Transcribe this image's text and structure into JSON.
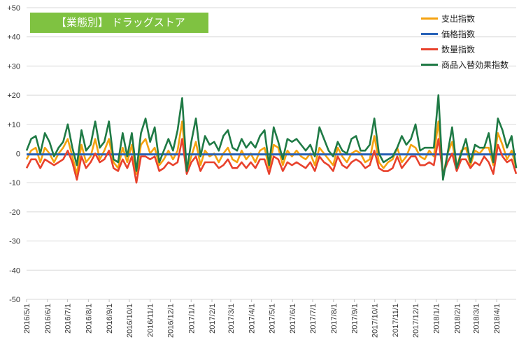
{
  "title": "【業態別】 ドラッグストア",
  "chart_data": {
    "type": "line",
    "title": "【業態別】 ドラッグストア",
    "ylim": [
      -50,
      50
    ],
    "yticks": [
      "+50",
      "+40",
      "+30",
      "+20",
      "+10",
      "0",
      "-10",
      "-20",
      "-30",
      "-40",
      "-50"
    ],
    "ytick_values": [
      50,
      40,
      30,
      20,
      10,
      0,
      -10,
      -20,
      -30,
      -40,
      -50
    ],
    "x_tick_labels": [
      "2016/5/1",
      "2016/6/1",
      "2016/7/1",
      "2016/8/1",
      "2016/9/1",
      "2016/10/1",
      "2016/11/1",
      "2016/12/1",
      "2017/1/1",
      "2017/2/1",
      "2017/3/1",
      "2017/4/1",
      "2017/5/1",
      "2017/6/1",
      "2017/7/1",
      "2017/8/1",
      "2017/9/1",
      "2017/10/1",
      "2017/11/1",
      "2017/12/1",
      "2018/1/1",
      "2018/2/1",
      "2018/3/1",
      "2018/4/1"
    ],
    "x_start": "2016/5/1",
    "x_end": "2018/4/30",
    "x_interval": "weekly",
    "grid": true,
    "legend_position": "top-right",
    "series": [
      {
        "name": "支出指数",
        "color": "#f5a20f",
        "values": [
          -2,
          1,
          2,
          -3,
          2,
          0,
          -3,
          0,
          2,
          5,
          -1,
          -7,
          3,
          -3,
          -1,
          5,
          -2,
          1,
          5,
          -3,
          -5,
          2,
          -3,
          3,
          -7,
          3,
          5,
          0,
          2,
          -4,
          -2,
          1,
          -2,
          1,
          11,
          -6,
          -1,
          4,
          -4,
          1,
          -1,
          0,
          -3,
          0,
          2,
          -2,
          -3,
          1,
          -2,
          0,
          -3,
          1,
          2,
          -5,
          3,
          2,
          -4,
          1,
          -1,
          1,
          -1,
          -2,
          0,
          -4,
          2,
          0,
          -2,
          -4,
          2,
          -1,
          -3,
          0,
          1,
          0,
          -3,
          -2,
          6,
          -3,
          -5,
          -3,
          -2,
          2,
          -3,
          -1,
          3,
          2,
          -1,
          -2,
          1,
          -1,
          11,
          -8,
          0,
          4,
          -5,
          1,
          2,
          -4,
          1,
          0,
          2,
          2,
          -4,
          7,
          3,
          -2,
          1,
          -5
        ]
      },
      {
        "name": "価格指数",
        "color": "#2862b8",
        "values": [
          -0.3,
          -0.3,
          -0.3,
          -0.3,
          -0.3,
          -0.3,
          -0.3,
          -0.3,
          -0.3,
          -0.3,
          -0.3,
          -0.3,
          -0.3,
          -0.3,
          -0.3,
          -0.3,
          -0.3,
          -0.3,
          -0.3,
          -0.3,
          -0.3,
          -0.3,
          -0.3,
          -0.3,
          -0.3,
          -0.3,
          -0.3,
          -0.3,
          -0.3,
          -0.3,
          -0.3,
          -0.3,
          -0.3,
          -0.3,
          -0.3,
          -0.3,
          -0.3,
          -0.3,
          -0.3,
          -0.3,
          -0.3,
          -0.3,
          -0.3,
          -0.3,
          -0.3,
          -0.3,
          -0.3,
          -0.3,
          -0.3,
          -0.3,
          -0.3,
          -0.3,
          -0.3,
          -0.3,
          -0.3,
          -0.3,
          -0.3,
          -0.3,
          -0.3,
          -0.3,
          -0.3,
          -0.3,
          -0.3,
          -0.3,
          -0.3,
          -0.3,
          -0.3,
          -0.3,
          -0.3,
          -0.3,
          -0.3,
          -0.3,
          -0.3,
          -0.3,
          -0.3,
          -0.3,
          -0.3,
          -0.3,
          -0.3,
          -0.3,
          -0.3,
          -0.3,
          -0.3,
          -0.3,
          -0.3,
          -0.3,
          -0.3,
          -0.3,
          -0.3,
          -0.3,
          -0.3,
          -0.3,
          -0.3,
          -0.3,
          -0.3,
          -0.3,
          -0.3,
          -0.3,
          -0.3,
          -0.3,
          -0.3,
          -0.3,
          -0.3,
          -0.3,
          -0.3,
          -0.3,
          -0.3,
          -0.3
        ]
      },
      {
        "name": "数量指数",
        "color": "#e8412c",
        "values": [
          -5,
          -2,
          -2,
          -5,
          -2,
          -3,
          -4,
          -3,
          -2,
          1,
          -3,
          -9,
          -1,
          -5,
          -3,
          0,
          -3,
          -2,
          1,
          -5,
          -6,
          -2,
          -5,
          -1,
          -10,
          -1,
          -1,
          -2,
          -1,
          -6,
          -5,
          -3,
          -4,
          -3,
          5,
          -7,
          -3,
          -1,
          -6,
          -3,
          -3,
          -3,
          -5,
          -4,
          -2,
          -5,
          -5,
          -3,
          -5,
          -3,
          -5,
          -2,
          -2,
          -7,
          -1,
          -2,
          -6,
          -3,
          -4,
          -3,
          -4,
          -5,
          -3,
          -6,
          -1,
          -3,
          -4,
          -6,
          -1,
          -4,
          -5,
          -3,
          -2,
          -3,
          -5,
          -4,
          1,
          -5,
          -6,
          -6,
          -5,
          -1,
          -5,
          -3,
          -1,
          -1,
          -4,
          -4,
          -3,
          -4,
          5,
          -7,
          -3,
          0,
          -6,
          -2,
          -2,
          -5,
          -3,
          -4,
          -1,
          -3,
          -7,
          3,
          -1,
          -3,
          -2,
          -7
        ]
      },
      {
        "name": "商品入替効果指数",
        "color": "#1f7a45",
        "values": [
          1,
          5,
          6,
          0,
          7,
          4,
          -1,
          2,
          4,
          10,
          2,
          -4,
          8,
          1,
          3,
          11,
          2,
          4,
          11,
          -2,
          -3,
          7,
          -1,
          7,
          -6,
          7,
          12,
          4,
          9,
          -3,
          1,
          5,
          1,
          8,
          19,
          -6,
          4,
          12,
          -1,
          6,
          3,
          4,
          1,
          6,
          8,
          2,
          1,
          5,
          2,
          4,
          2,
          6,
          8,
          -4,
          9,
          4,
          -2,
          5,
          4,
          5,
          3,
          1,
          3,
          -1,
          9,
          5,
          1,
          -1,
          4,
          1,
          0,
          5,
          6,
          1,
          1,
          3,
          12,
          0,
          -3,
          -2,
          -1,
          2,
          6,
          3,
          5,
          10,
          1,
          2,
          2,
          2,
          20,
          -9,
          0,
          9,
          -5,
          0,
          5,
          -3,
          3,
          2,
          2,
          7,
          -3,
          12,
          8,
          2,
          6,
          -5
        ]
      }
    ]
  }
}
